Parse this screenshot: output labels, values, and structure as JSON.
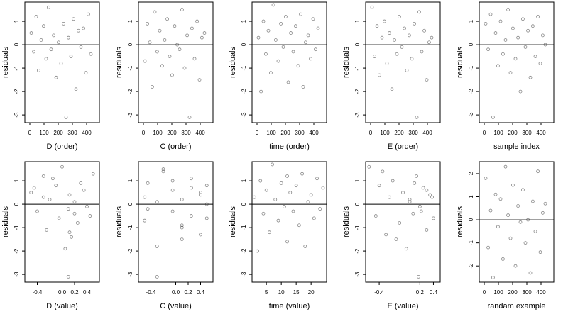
{
  "chart_data": [
    {
      "type": "scatter",
      "x_label": "D (order)",
      "y_label": "residuals",
      "xlim": [
        -35,
        490
      ],
      "ylim": [
        -3.33,
        1.82
      ],
      "xticks": [
        0,
        100,
        200,
        300,
        400
      ],
      "yticks": [
        -3,
        -2,
        -1,
        0,
        1
      ],
      "reference_line": 0,
      "x": [
        10,
        28,
        45,
        62,
        80,
        97,
        115,
        132,
        150,
        168,
        185,
        202,
        220,
        238,
        255,
        272,
        290,
        308,
        325,
        342,
        360,
        378,
        395,
        412,
        430
      ],
      "y": [
        0.5,
        -0.3,
        1.2,
        -1.1,
        0.2,
        0.8,
        -0.6,
        1.6,
        -0.2,
        0.4,
        -1.4,
        0.1,
        -0.8,
        0.9,
        -3.1,
        0.3,
        -0.5,
        1.1,
        -1.9,
        0.6,
        -0.1,
        0.7,
        -1.2,
        1.3,
        -0.4
      ]
    },
    {
      "type": "scatter",
      "x_label": "C (order)",
      "y_label": "residuals",
      "xlim": [
        -35,
        490
      ],
      "ylim": [
        -3.33,
        1.82
      ],
      "xticks": [
        0,
        100,
        200,
        300,
        400
      ],
      "yticks": [
        -3,
        -2,
        -1,
        0,
        1
      ],
      "reference_line": 0,
      "x": [
        10,
        28,
        45,
        62,
        80,
        97,
        115,
        132,
        150,
        168,
        185,
        202,
        220,
        238,
        255,
        272,
        290,
        308,
        325,
        342,
        360,
        378,
        395,
        412,
        430
      ],
      "y": [
        -0.7,
        0.9,
        0.1,
        -1.8,
        1.4,
        -0.3,
        0.6,
        -0.9,
        0.2,
        1.1,
        -0.5,
        -1.3,
        0.8,
        0.0,
        -0.2,
        1.5,
        -1.0,
        0.4,
        -3.1,
        0.7,
        -0.6,
        1.0,
        -1.5,
        0.3,
        0.5
      ]
    },
    {
      "type": "scatter",
      "x_label": "time (order)",
      "y_label": "residuals",
      "xlim": [
        -35,
        490
      ],
      "ylim": [
        -3.33,
        1.82
      ],
      "xticks": [
        0,
        100,
        200,
        300,
        400
      ],
      "yticks": [
        -3,
        -2,
        -1,
        0,
        1
      ],
      "reference_line": 0,
      "x": [
        10,
        28,
        45,
        62,
        80,
        97,
        115,
        132,
        150,
        168,
        185,
        202,
        220,
        238,
        255,
        272,
        290,
        308,
        325,
        342,
        360,
        378,
        395,
        412,
        430
      ],
      "y": [
        0.3,
        -2.0,
        1.0,
        -0.4,
        0.6,
        -1.2,
        1.7,
        0.2,
        -0.7,
        0.9,
        -0.1,
        1.2,
        -1.6,
        0.5,
        -0.3,
        0.8,
        -0.9,
        1.3,
        -1.8,
        0.1,
        0.4,
        -0.6,
        1.1,
        -0.2,
        0.7
      ]
    },
    {
      "type": "scatter",
      "x_label": "E (order)",
      "y_label": "residuals",
      "xlim": [
        -35,
        490
      ],
      "ylim": [
        -3.33,
        1.82
      ],
      "xticks": [
        0,
        100,
        200,
        300,
        400
      ],
      "yticks": [
        -3,
        -2,
        -1,
        0,
        1
      ],
      "reference_line": 0,
      "x": [
        10,
        28,
        45,
        62,
        80,
        97,
        115,
        132,
        150,
        168,
        185,
        202,
        220,
        238,
        255,
        272,
        290,
        308,
        325,
        342,
        360,
        378,
        395,
        412,
        430
      ],
      "y": [
        1.6,
        -0.5,
        0.8,
        -1.3,
        0.3,
        1.0,
        -0.8,
        0.5,
        -1.9,
        0.2,
        -0.4,
        1.2,
        -0.1,
        0.7,
        -1.1,
        0.4,
        -0.6,
        0.9,
        -3.1,
        1.4,
        -0.3,
        0.6,
        -1.5,
        0.1,
        0.3
      ]
    },
    {
      "type": "scatter",
      "x_label": "sample index",
      "y_label": "residuals",
      "xlim": [
        -35,
        490
      ],
      "ylim": [
        -3.33,
        1.82
      ],
      "xticks": [
        0,
        100,
        200,
        300,
        400
      ],
      "yticks": [
        -3,
        -2,
        -1,
        0,
        1
      ],
      "reference_line": 0,
      "x": [
        10,
        28,
        45,
        62,
        80,
        97,
        115,
        132,
        150,
        168,
        185,
        202,
        220,
        238,
        255,
        272,
        290,
        308,
        325,
        342,
        360,
        378,
        395,
        412,
        430
      ],
      "y": [
        0.9,
        -0.2,
        1.3,
        -3.1,
        0.5,
        -0.9,
        1.0,
        -0.4,
        0.2,
        1.5,
        -1.2,
        0.7,
        -0.6,
        0.3,
        -2.0,
        1.1,
        -0.1,
        0.6,
        -1.4,
        0.8,
        -0.5,
        1.2,
        -0.8,
        0.4,
        0.0
      ]
    },
    {
      "type": "scatter",
      "x_label": "D (value)",
      "y_label": "residuals",
      "xlim": [
        -0.6,
        0.6
      ],
      "ylim": [
        -3.33,
        1.82
      ],
      "xticks": [
        -0.4,
        {
          "value": 0,
          "label": "0.0"
        },
        0.2,
        0.4
      ],
      "yticks": [
        -3,
        -2,
        -1,
        0,
        1
      ],
      "reference_line": 0,
      "x": [
        -0.5,
        -0.4,
        -0.3,
        -0.25,
        -0.2,
        -0.1,
        -0.05,
        0.0,
        0.1,
        0.12,
        0.15,
        0.2,
        0.25,
        0.3,
        0.1,
        -0.3,
        0.45,
        -0.15,
        0.05,
        0.35,
        0.4,
        -0.45,
        0.12,
        0.5,
        0.2
      ],
      "y": [
        0.5,
        -0.3,
        1.2,
        -1.1,
        0.2,
        0.8,
        -0.6,
        1.6,
        -0.2,
        0.4,
        -1.4,
        0.1,
        -0.8,
        0.9,
        -3.1,
        0.3,
        -0.5,
        1.1,
        -1.9,
        0.6,
        -0.1,
        0.7,
        -1.2,
        1.3,
        -0.4
      ]
    },
    {
      "type": "scatter",
      "x_label": "C (value)",
      "y_label": "residuals",
      "xlim": [
        -0.6,
        0.6
      ],
      "ylim": [
        -3.33,
        1.82
      ],
      "xticks": [
        -0.4,
        {
          "value": 0,
          "label": "0.0"
        },
        0.2,
        0.4
      ],
      "yticks": [
        -3,
        -2,
        -1,
        0,
        1
      ],
      "reference_line": 0,
      "x": [
        -0.5,
        -0.45,
        -0.3,
        -0.3,
        -0.2,
        -0.05,
        -0.05,
        0.1,
        0.1,
        0.25,
        0.25,
        0.4,
        0.5,
        0.5,
        -0.45,
        -0.2,
        0.1,
        0.4,
        -0.3,
        0.25,
        0.5,
        -0.05,
        0.1,
        -0.5,
        0.4
      ],
      "y": [
        -0.7,
        0.9,
        0.1,
        -1.8,
        1.4,
        -0.3,
        0.6,
        -0.9,
        0.2,
        1.1,
        -0.5,
        -1.3,
        0.8,
        0.0,
        -0.2,
        1.5,
        -1.0,
        0.4,
        -3.1,
        0.7,
        -0.6,
        1.0,
        -1.5,
        0.3,
        0.5
      ]
    },
    {
      "type": "scatter",
      "x_label": "time (value)",
      "y_label": "residuals",
      "xlim": [
        0.2,
        25.2
      ],
      "ylim": [
        -3.33,
        1.82
      ],
      "xticks": [
        5,
        10,
        15,
        20
      ],
      "yticks": [
        -3,
        -2,
        -1,
        0,
        1
      ],
      "reference_line": 0,
      "x": [
        1,
        2,
        3,
        4,
        5,
        6,
        7,
        8,
        9,
        10,
        11,
        12,
        12,
        13,
        14,
        15,
        16,
        17,
        18,
        19,
        20,
        21,
        22,
        23,
        24
      ],
      "y": [
        0.3,
        -2.0,
        1.0,
        -0.4,
        0.6,
        -1.2,
        1.7,
        0.2,
        -0.7,
        0.9,
        -0.1,
        1.2,
        -1.6,
        0.5,
        -0.3,
        0.8,
        -0.9,
        1.3,
        -1.8,
        0.1,
        0.4,
        -0.6,
        1.1,
        -0.2,
        0.7
      ]
    },
    {
      "type": "scatter",
      "x_label": "E (value)",
      "y_label": "residuals",
      "xlim": [
        -0.6,
        0.5
      ],
      "ylim": [
        -3.33,
        1.82
      ],
      "xticks": [
        -0.4,
        0.2,
        0.4
      ],
      "yticks": [
        -3,
        -2,
        -1,
        0,
        1
      ],
      "reference_line": 0,
      "x": [
        -0.55,
        -0.45,
        -0.4,
        -0.3,
        -0.25,
        -0.2,
        -0.1,
        -0.05,
        0.0,
        0.05,
        0.1,
        0.15,
        0.2,
        0.25,
        0.3,
        0.35,
        0.4,
        0.12,
        0.18,
        -0.35,
        0.22,
        0.3,
        -0.15,
        0.05,
        0.38
      ],
      "y": [
        1.6,
        -0.5,
        0.8,
        -1.3,
        0.3,
        1.0,
        -0.8,
        0.5,
        -1.9,
        0.2,
        -0.4,
        1.2,
        -0.1,
        0.7,
        -1.1,
        0.4,
        -0.6,
        0.9,
        -3.1,
        1.4,
        -0.3,
        0.6,
        -1.5,
        0.1,
        0.3
      ]
    },
    {
      "type": "scatter",
      "x_label": "randam example",
      "y_label": "residuals",
      "xlim": [
        -35,
        490
      ],
      "ylim": [
        -2.7,
        2.52
      ],
      "xticks": [
        0,
        100,
        200,
        300,
        400
      ],
      "yticks": [
        -2,
        -1,
        0,
        1,
        2
      ],
      "reference_line": 0,
      "x": [
        10,
        28,
        45,
        62,
        80,
        97,
        115,
        132,
        150,
        168,
        185,
        202,
        220,
        238,
        255,
        272,
        290,
        308,
        325,
        342,
        360,
        378,
        395,
        412,
        430
      ],
      "y": [
        1.8,
        -1.2,
        0.4,
        -2.5,
        1.1,
        -0.3,
        0.9,
        -1.7,
        2.3,
        0.2,
        -0.8,
        1.5,
        -2.0,
        0.6,
        -0.1,
        1.3,
        -1.0,
        0.0,
        -2.3,
        0.8,
        -0.5,
        2.1,
        -1.4,
        0.3,
        0.7
      ]
    }
  ]
}
